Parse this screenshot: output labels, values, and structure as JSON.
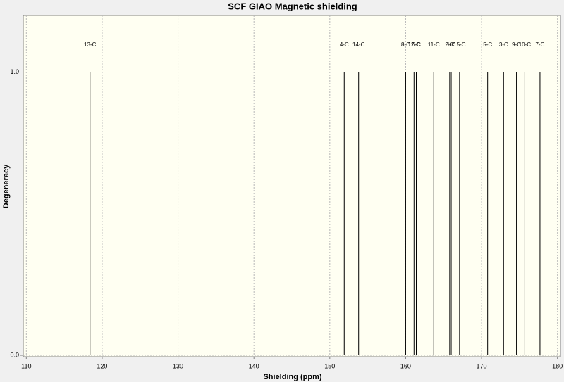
{
  "chart_data": {
    "type": "stick",
    "title": "SCF GIAO Magnetic shielding",
    "x_label": "Shielding (ppm)",
    "y_label": "Degeneracy",
    "x": [
      118.4,
      151.9,
      153.8,
      160.0,
      161.1,
      161.4,
      163.7,
      165.8,
      166.0,
      167.1,
      170.8,
      172.9,
      174.6,
      175.7,
      177.7
    ],
    "values": [
      1,
      1,
      1,
      1,
      1,
      1,
      1,
      1,
      1,
      1,
      1,
      1,
      1,
      1,
      1
    ],
    "peak_labels": [
      "13-C",
      "4-C",
      "14-C",
      "8-C",
      "12-C",
      "6-C",
      "11-C",
      "2-C",
      "1-C",
      "15-C",
      "5-C",
      "3-C",
      "9-C",
      "10-C",
      "7-C"
    ],
    "color": "#000000",
    "xlim": [
      109.6,
      180.4
    ],
    "ylim": [
      -0.005,
      1.2
    ],
    "xticks": [
      110,
      120,
      130,
      140,
      150,
      160,
      170,
      180
    ],
    "yticks": [
      {
        "value": 0,
        "label": "0.0"
      },
      {
        "value": 1,
        "label": "1.0"
      }
    ],
    "grid": true
  }
}
